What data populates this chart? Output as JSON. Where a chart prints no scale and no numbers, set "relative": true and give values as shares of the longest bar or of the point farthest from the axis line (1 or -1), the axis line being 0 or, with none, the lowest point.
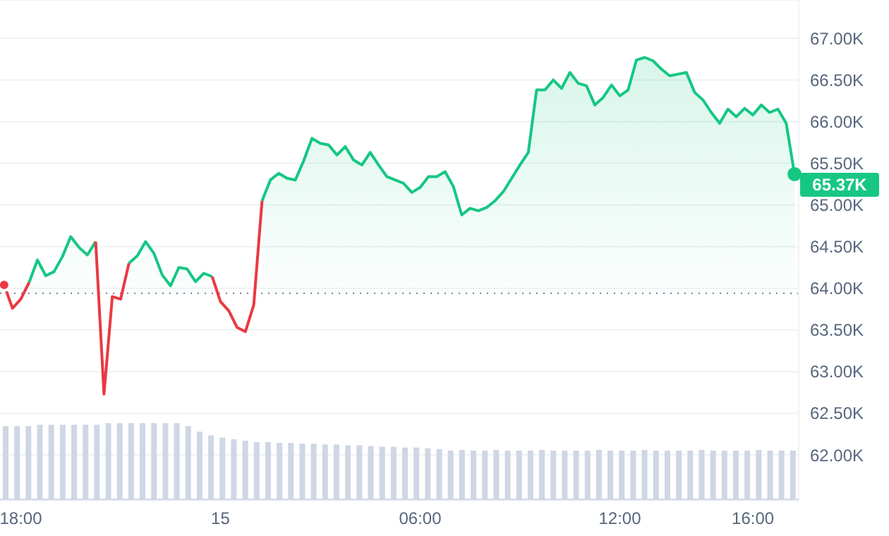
{
  "chart_data": [
    {
      "type": "area",
      "categories": [
        null,
        null,
        "18:00",
        null,
        null,
        null,
        null,
        null,
        null,
        null,
        null,
        null,
        null,
        null,
        null,
        null,
        null,
        null,
        null,
        null,
        null,
        null,
        null,
        null,
        null,
        null,
        "15",
        null,
        null,
        null,
        null,
        null,
        null,
        null,
        null,
        null,
        null,
        null,
        null,
        null,
        null,
        null,
        null,
        null,
        null,
        null,
        null,
        null,
        null,
        null,
        "06:00",
        null,
        null,
        null,
        null,
        null,
        null,
        null,
        null,
        null,
        null,
        null,
        null,
        null,
        null,
        null,
        null,
        null,
        null,
        null,
        null,
        null,
        null,
        null,
        "12:00",
        null,
        null,
        null,
        null,
        null,
        null,
        null,
        null,
        null,
        null,
        null,
        null,
        null,
        null,
        null,
        "16:00",
        null,
        null,
        null,
        null,
        null
      ],
      "series": [
        {
          "color": "#16c784",
          "values": [
            null,
            null,
            null,
            64070,
            64340,
            64150,
            64200,
            64380,
            64620,
            64490,
            64400,
            64560,
            null,
            null,
            null,
            64300,
            64390,
            64560,
            64420,
            64160,
            64030,
            64250,
            64230,
            64080,
            64180,
            64140,
            null,
            null,
            null,
            null,
            null,
            65050,
            65300,
            65380,
            65320,
            65300,
            65530,
            65800,
            65740,
            65720,
            65600,
            65700,
            65540,
            65480,
            65630,
            65480,
            65340,
            65300,
            65260,
            65150,
            65210,
            65340,
            65340,
            65400,
            65220,
            64880,
            64960,
            64930,
            64970,
            65050,
            65160,
            65320,
            65480,
            65630,
            66380,
            66380,
            66500,
            66400,
            66590,
            66460,
            66430,
            66200,
            66290,
            66440,
            66310,
            66380,
            66740,
            66770,
            66730,
            66630,
            66550,
            66570,
            66590,
            66350,
            66260,
            66110,
            65980,
            66150,
            66060,
            66160,
            66080,
            66200,
            66110,
            66150,
            65980,
            65370
          ]
        },
        {
          "color": "#ea3943",
          "type": "line",
          "values": [
            64040,
            63760,
            63870,
            64070,
            null,
            null,
            null,
            null,
            null,
            null,
            null,
            64560,
            62730,
            63900,
            63870,
            64300,
            null,
            null,
            null,
            null,
            null,
            null,
            null,
            null,
            null,
            64140,
            63840,
            63730,
            63530,
            63480,
            63800,
            65050,
            null,
            null,
            null,
            null,
            null,
            null,
            null,
            null,
            null,
            null,
            null,
            null,
            null,
            null,
            null,
            null,
            null,
            null,
            null,
            null,
            null,
            null,
            null,
            null,
            null,
            null,
            null,
            null,
            null,
            null,
            null,
            null,
            null,
            null,
            null,
            null,
            null,
            null,
            null,
            null,
            null,
            null,
            null,
            null,
            null,
            null,
            null,
            null,
            null,
            null,
            null,
            null,
            null,
            null,
            null,
            null,
            null,
            null,
            null,
            null,
            null,
            null,
            null,
            null
          ]
        }
      ],
      "ylim": [
        61450,
        67460
      ],
      "yticks": [
        {
          "value": 62000,
          "label": "62.00K"
        },
        {
          "value": 62500,
          "label": "62.50K"
        },
        {
          "value": 63000,
          "label": "63.00K"
        },
        {
          "value": 63500,
          "label": "63.50K"
        },
        {
          "value": 64000,
          "label": "64.00K"
        },
        {
          "value": 64500,
          "label": "64.50K"
        },
        {
          "value": 65000,
          "label": "65.00K"
        },
        {
          "value": 65500,
          "label": "65.50K"
        },
        {
          "value": 66000,
          "label": "66.00K"
        },
        {
          "value": 66500,
          "label": "66.50K"
        },
        {
          "value": 67000,
          "label": "67.00K"
        }
      ],
      "grid": "y",
      "ref_lines": [
        {
          "axis": "y",
          "value": 63940,
          "line_style": "dotted",
          "color": "#808a9d"
        }
      ],
      "annotations": [
        "65.37K"
      ]
    },
    {
      "type": "bar",
      "relative": true,
      "color": "#cfd6e4",
      "categories": [
        null,
        null,
        null,
        null,
        null,
        null,
        null,
        null,
        null,
        null,
        null,
        null,
        null,
        null,
        null,
        null,
        null,
        null,
        null,
        null,
        null,
        null,
        null,
        null,
        null,
        null,
        null,
        null,
        null,
        null,
        null,
        null,
        null,
        null,
        null,
        null,
        null,
        null,
        null,
        null,
        null,
        null,
        null,
        null,
        null,
        null,
        null,
        null,
        null,
        null,
        null,
        null,
        null,
        null,
        null,
        null,
        null,
        null,
        null,
        null,
        null,
        null,
        null,
        null,
        null,
        null,
        null,
        null,
        null,
        null
      ],
      "values": [
        0.96,
        0.96,
        0.96,
        0.98,
        0.98,
        0.98,
        0.98,
        0.98,
        0.98,
        1,
        1,
        1,
        1,
        1,
        1,
        1,
        0.96,
        0.89,
        0.84,
        0.81,
        0.79,
        0.77,
        0.75,
        0.75,
        0.74,
        0.74,
        0.73,
        0.73,
        0.72,
        0.72,
        0.71,
        0.71,
        0.7,
        0.69,
        0.69,
        0.68,
        0.68,
        0.67,
        0.66,
        0.64,
        0.65,
        0.64,
        0.64,
        0.65,
        0.64,
        0.64,
        0.64,
        0.65,
        0.64,
        0.64,
        0.64,
        0.64,
        0.65,
        0.64,
        0.64,
        0.64,
        0.65,
        0.64,
        0.64,
        0.64,
        0.64,
        0.65,
        0.64,
        0.64,
        0.64,
        0.64,
        0.65,
        0.64,
        0.64,
        0.64
      ]
    }
  ]
}
